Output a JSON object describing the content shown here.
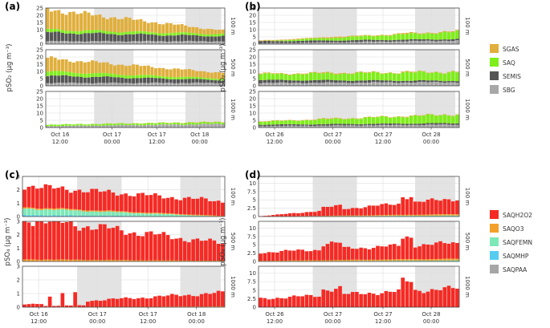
{
  "chart_data": [
    {
      "id": "a",
      "panel_label": "(a)",
      "type": "bar",
      "stacked": true,
      "ylabel": "pSO₂ (µg m⁻³)",
      "ylabel_sup": "-3",
      "x_ticks": [
        {
          "line1": "Oct 16",
          "line2": "12:00",
          "at": 0.08
        },
        {
          "line1": "Oct 17",
          "line2": "00:00",
          "at": 0.37
        },
        {
          "line1": "Oct 17",
          "line2": "12:00",
          "at": 0.62
        },
        {
          "line1": "Oct 18",
          "line2": "00:00",
          "at": 0.86
        }
      ],
      "shade": [
        [
          0.27,
          0.49
        ],
        [
          0.78,
          0.98
        ]
      ],
      "series_names": [
        "SBG",
        "SEMIS",
        "SAQ",
        "SGAS"
      ],
      "rows": [
        {
          "strip": "100 m",
          "ylim": [
            0,
            25
          ],
          "yticks": [
            0,
            5,
            10,
            15,
            20,
            25
          ],
          "profiles": [
            [
              0,
              2,
              20
            ],
            [
              1,
              2,
              10
            ],
            [
              1,
              2,
              3
            ]
          ],
          "gentle": [
            [
              0,
              2,
              20
            ],
            [
              1,
              2,
              10
            ],
            [
              1,
              2,
              3
            ]
          ],
          "start": [
            2,
            6,
            2,
            14
          ],
          "end": [
            2,
            3.5,
            1.5,
            2.5
          ]
        },
        {
          "strip": "500 m",
          "ylim": [
            0,
            25
          ],
          "yticks": [
            0,
            5,
            10,
            15,
            20,
            25
          ],
          "start": [
            2,
            5,
            3,
            9
          ],
          "end": [
            2,
            2,
            1,
            4
          ]
        },
        {
          "strip": "1000 m",
          "ylim": [
            0,
            25
          ],
          "yticks": [
            0,
            5,
            10,
            15,
            20,
            25
          ],
          "start": [
            1,
            0,
            1,
            0
          ],
          "end": [
            2.5,
            0,
            1.2,
            0.3
          ]
        }
      ]
    },
    {
      "id": "b",
      "panel_label": "(b)",
      "type": "bar",
      "stacked": true,
      "ylabel": "pSO₂ (µg m⁻³)",
      "x_ticks": [
        {
          "line1": "Oct 26",
          "line2": "12:00",
          "at": 0.08
        },
        {
          "line1": "Oct 27",
          "line2": "00:00",
          "at": 0.37
        },
        {
          "line1": "Oct 27",
          "line2": "12:00",
          "at": 0.62
        },
        {
          "line1": "Oct 28",
          "line2": "00:00",
          "at": 0.86
        }
      ],
      "shade": [
        [
          0.27,
          0.49
        ],
        [
          0.78,
          0.98
        ]
      ],
      "series_names": [
        "SBG",
        "SEMIS",
        "SAQ",
        "SGAS"
      ],
      "rows": [
        {
          "strip": "100 m",
          "ylim": [
            0,
            25
          ],
          "yticks": [
            0,
            5,
            10,
            15,
            20,
            25
          ],
          "start": [
            0.5,
            1.5,
            0,
            0.5
          ],
          "end": [
            2.5,
            1,
            5,
            0.5
          ]
        },
        {
          "strip": "500 m",
          "ylim": [
            0,
            25
          ],
          "yticks": [
            0,
            5,
            10,
            15,
            20,
            25
          ],
          "start": [
            2,
            2,
            4,
            0.5
          ],
          "end": [
            2.5,
            1,
            6,
            0.3
          ]
        },
        {
          "strip": "1000 m",
          "ylim": [
            0,
            25
          ],
          "yticks": [
            0,
            5,
            10,
            15,
            20,
            25
          ],
          "start": [
            1,
            1,
            2,
            0.3
          ],
          "end": [
            2,
            1,
            6,
            0.3
          ]
        }
      ]
    },
    {
      "id": "c",
      "panel_label": "(c)",
      "type": "bar",
      "stacked": true,
      "ylabel": "pSO₄ (µg m⁻³)",
      "x_ticks": [
        {
          "line1": "Oct 16",
          "line2": "12:00",
          "at": 0.08
        },
        {
          "line1": "Oct 17",
          "line2": "00:00",
          "at": 0.37
        },
        {
          "line1": "Oct 17",
          "line2": "12:00",
          "at": 0.62
        },
        {
          "line1": "Oct 18",
          "line2": "00:00",
          "at": 0.86
        }
      ],
      "shade": [
        [
          0.27,
          0.49
        ],
        [
          0.78,
          0.98
        ]
      ],
      "series_names": [
        "SAQPAA",
        "SAQMHP",
        "SAQFEMN",
        "SAQO3",
        "SAQH2O2"
      ],
      "rows": [
        {
          "strip": "100 m",
          "ylim": [
            0,
            3
          ],
          "yticks": [
            0,
            1,
            2,
            3
          ],
          "start": [
            0,
            0.1,
            0.5,
            0.1,
            1.6
          ],
          "end": [
            0,
            0,
            0,
            0.05,
            1.1
          ]
        },
        {
          "strip": "500 m",
          "ylim": [
            0,
            3
          ],
          "yticks": [
            0,
            1,
            2,
            3
          ],
          "start": [
            0,
            0,
            0,
            0.15,
            3.1
          ],
          "end": [
            0,
            0,
            0,
            0.05,
            1.3
          ]
        },
        {
          "strip": "1000 m",
          "ylim": [
            0,
            3
          ],
          "yticks": [
            0,
            1,
            2,
            3
          ],
          "start": [
            0,
            0,
            0,
            0,
            0.2
          ],
          "end": [
            0,
            0,
            0,
            0.05,
            1.0
          ]
        }
      ]
    },
    {
      "id": "d",
      "panel_label": "(d)",
      "type": "bar",
      "stacked": true,
      "ylabel": "pSO₄ (µg m⁻³)",
      "x_ticks": [
        {
          "line1": "Oct 26",
          "line2": "12:00",
          "at": 0.08
        },
        {
          "line1": "Oct 27",
          "line2": "00:00",
          "at": 0.37
        },
        {
          "line1": "Oct 27",
          "line2": "12:00",
          "at": 0.62
        },
        {
          "line1": "Oct 28",
          "line2": "00:00",
          "at": 0.86
        }
      ],
      "shade": [
        [
          0.27,
          0.49
        ],
        [
          0.78,
          0.98
        ]
      ],
      "series_names": [
        "SAQPAA",
        "SAQMHP",
        "SAQFEMN",
        "SAQO3",
        "SAQH2O2"
      ],
      "rows": [
        {
          "strip": "100 m",
          "ylim": [
            0,
            12
          ],
          "yticks": [
            0,
            2.5,
            5,
            7.5,
            10
          ],
          "start": [
            0,
            0,
            0,
            0,
            0.1
          ],
          "end": [
            0,
            0,
            0.3,
            0.4,
            4.7
          ]
        },
        {
          "strip": "500 m",
          "ylim": [
            0,
            12
          ],
          "yticks": [
            0,
            2.5,
            5,
            7.5,
            10
          ],
          "start": [
            0,
            0,
            0,
            0.2,
            2.5
          ],
          "end": [
            0,
            0,
            0.3,
            0.5,
            4.7
          ]
        },
        {
          "strip": "1000 m",
          "ylim": [
            0,
            12
          ],
          "yticks": [
            0,
            2.5,
            5,
            7.5,
            10
          ],
          "start": [
            0,
            0,
            0,
            0,
            2.5
          ],
          "end": [
            0,
            0,
            0,
            0,
            5.5
          ]
        }
      ]
    }
  ],
  "legends": {
    "top": [
      {
        "name": "SGAS",
        "color": "#E0AF3C"
      },
      {
        "name": "SAQ",
        "color": "#7FEE1A"
      },
      {
        "name": "SEMIS",
        "color": "#555555"
      },
      {
        "name": "SBG",
        "color": "#A8A8A8"
      }
    ],
    "bottom": [
      {
        "name": "SAQH2O2",
        "color": "#F52A24"
      },
      {
        "name": "SAQO3",
        "color": "#F2A02B"
      },
      {
        "name": "SAQFEMN",
        "color": "#7DE8B8"
      },
      {
        "name": "SAQMHP",
        "color": "#55CCF0"
      },
      {
        "name": "SAQPAA",
        "color": "#A6A6A6"
      }
    ]
  },
  "colors": {
    "SGAS": "#E0AF3C",
    "SAQ": "#7FEE1A",
    "SEMIS": "#555555",
    "SBG": "#A8A8A8",
    "SAQH2O2": "#F52A24",
    "SAQO3": "#F2A02B",
    "SAQFEMN": "#7DE8B8",
    "SAQMHP": "#55CCF0",
    "SAQPAA": "#A6A6A6",
    "shade": "#E3E3E3",
    "grid": "#EBEBEB",
    "strip_bg": "#FFFFFF"
  }
}
